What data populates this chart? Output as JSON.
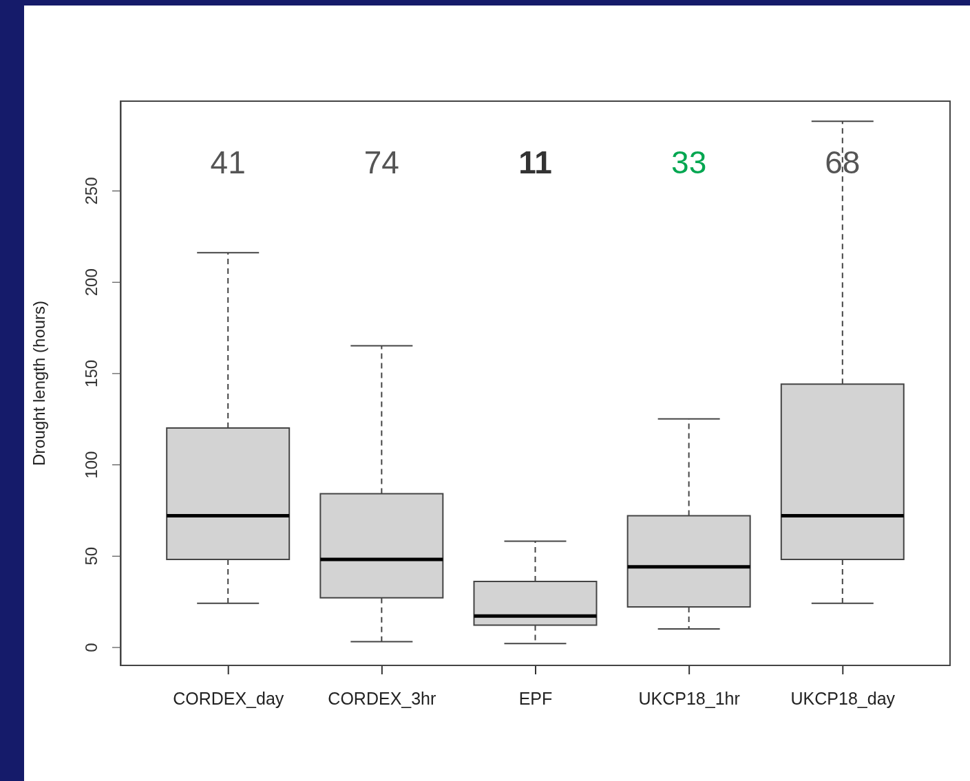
{
  "chart_data": {
    "type": "box",
    "ylabel": "Drought length (hours)",
    "categories": [
      "CORDEX_day",
      "CORDEX_3hr",
      "EPF",
      "UKCP18_1hr",
      "UKCP18_day"
    ],
    "boxes": [
      {
        "low": 24,
        "q1": 48,
        "median": 72,
        "q3": 120,
        "high": 216
      },
      {
        "low": 3,
        "q1": 27,
        "median": 48,
        "q3": 84,
        "high": 165
      },
      {
        "low": 2,
        "q1": 12,
        "median": 17,
        "q3": 36,
        "high": 58
      },
      {
        "low": 10,
        "q1": 22,
        "median": 44,
        "q3": 72,
        "high": 125
      },
      {
        "low": 24,
        "q1": 48,
        "median": 72,
        "q3": 144,
        "high": 288
      }
    ],
    "color": "#d3d3d3",
    "ylim": [
      -10,
      299
    ],
    "yticks": [
      0,
      50,
      100,
      150,
      200,
      250
    ],
    "grid": false,
    "annotations": [
      "41",
      "74",
      "11",
      "33",
      "68"
    ]
  }
}
